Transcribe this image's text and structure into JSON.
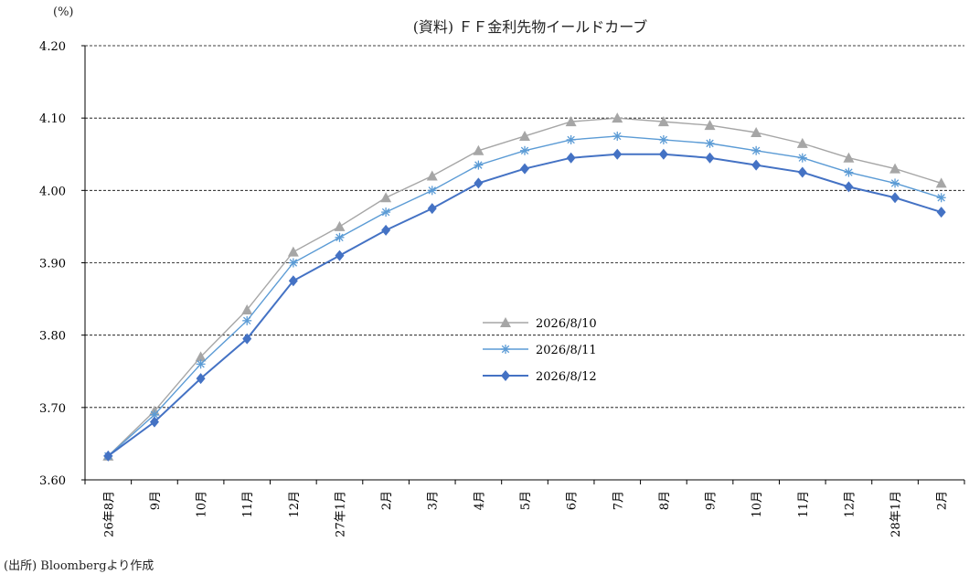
{
  "unit_label": "(%)",
  "title": "(資料) ＦＦ金利先物イールドカーブ",
  "source": "(出所) Bloombergより作成",
  "chart_data": {
    "type": "line",
    "title": "(資料) ＦＦ金利先物イールドカーブ",
    "xlabel": "",
    "ylabel": "(%)",
    "ylim": [
      3.6,
      4.2
    ],
    "yticks": [
      "4.20",
      "4.10",
      "4.00",
      "3.90",
      "3.80",
      "3.70",
      "3.60"
    ],
    "grid": true,
    "legend": "center",
    "categories": [
      "26年8月",
      "9月",
      "10月",
      "11月",
      "12月",
      "27年1月",
      "2月",
      "3月",
      "4月",
      "5月",
      "6月",
      "7月",
      "8月",
      "9月",
      "10月",
      "11月",
      "12月",
      "28年1月",
      "2月"
    ],
    "series": [
      {
        "name": "2026/8/10",
        "marker": "triangle",
        "color": "#a6a6a6",
        "values": [
          3.633,
          3.695,
          3.77,
          3.835,
          3.915,
          3.95,
          3.99,
          4.02,
          4.055,
          4.075,
          4.095,
          4.1,
          4.095,
          4.09,
          4.08,
          4.065,
          4.045,
          4.03,
          4.01
        ]
      },
      {
        "name": "2026/8/11",
        "marker": "star",
        "color": "#5b9bd5",
        "values": [
          3.633,
          3.69,
          3.76,
          3.82,
          3.9,
          3.935,
          3.97,
          4.0,
          4.035,
          4.055,
          4.07,
          4.075,
          4.07,
          4.065,
          4.055,
          4.045,
          4.025,
          4.01,
          3.99
        ]
      },
      {
        "name": "2026/8/12",
        "marker": "diamond",
        "color": "#4472c4",
        "values": [
          3.633,
          3.68,
          3.74,
          3.795,
          3.875,
          3.91,
          3.945,
          3.975,
          4.01,
          4.03,
          4.045,
          4.05,
          4.05,
          4.045,
          4.035,
          4.025,
          4.005,
          3.99,
          3.97
        ]
      }
    ]
  }
}
